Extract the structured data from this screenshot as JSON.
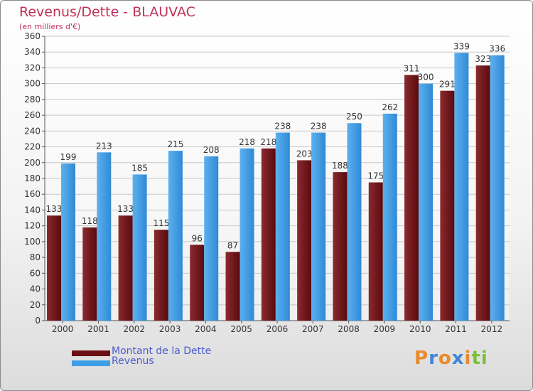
{
  "header": {
    "title": "Revenus/Dette - BLAUVAC",
    "subtitle": "(en milliers d'€)"
  },
  "legend": {
    "items": [
      {
        "label": "Montant de la Dette",
        "color": "#6b0f14"
      },
      {
        "label": "Revenus",
        "color": "#3f9fe6"
      }
    ]
  },
  "logo": {
    "letters": [
      "P",
      "r",
      "o",
      "x",
      "i",
      "t",
      "i"
    ],
    "colors": [
      "#e98b2b",
      "#3f86d6",
      "#e98b2b",
      "#3f86d6",
      "#e98b2b",
      "#7cbf3a",
      "#7cbf3a"
    ]
  },
  "chart_data": {
    "type": "bar",
    "title": "Revenus/Dette - BLAUVAC",
    "subtitle": "(en milliers d'€)",
    "xlabel": "",
    "ylabel": "",
    "categories": [
      "2000",
      "2001",
      "2002",
      "2003",
      "2004",
      "2005",
      "2006",
      "2007",
      "2008",
      "2009",
      "2010",
      "2011",
      "2012"
    ],
    "series": [
      {
        "name": "Montant de la Dette",
        "color": "#6b0f14",
        "values": [
          133,
          118,
          133,
          115,
          96,
          87,
          218,
          203,
          188,
          175,
          311,
          291,
          323
        ]
      },
      {
        "name": "Revenus",
        "color": "#3f9fe6",
        "values": [
          199,
          213,
          185,
          215,
          208,
          218,
          238,
          238,
          250,
          262,
          300,
          339,
          336
        ]
      }
    ],
    "ylim": [
      0,
      360
    ],
    "yticks": [
      0,
      20,
      40,
      60,
      80,
      100,
      120,
      140,
      160,
      180,
      200,
      220,
      240,
      260,
      280,
      300,
      320,
      340,
      360
    ],
    "grid": true,
    "legend_position": "bottom-left"
  }
}
